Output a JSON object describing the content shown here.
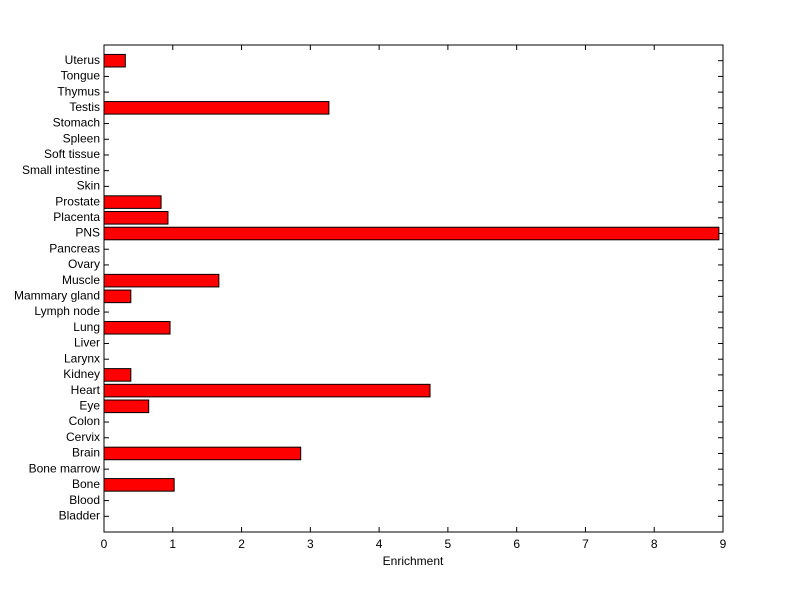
{
  "chart_data": {
    "type": "barh",
    "xlabel": "Enrichment",
    "categories": [
      "Bladder",
      "Blood",
      "Bone",
      "Bone marrow",
      "Brain",
      "Cervix",
      "Colon",
      "Eye",
      "Heart",
      "Kidney",
      "Larynx",
      "Liver",
      "Lung",
      "Lymph node",
      "Mammary gland",
      "Muscle",
      "Ovary",
      "Pancreas",
      "PNS",
      "Placenta",
      "Prostate",
      "Skin",
      "Small intestine",
      "Soft tissue",
      "Spleen",
      "Stomach",
      "Testis",
      "Thymus",
      "Tongue",
      "Uterus"
    ],
    "values": [
      0,
      0,
      1.02,
      0,
      2.86,
      0,
      0,
      0.65,
      4.74,
      0.39,
      0,
      0,
      0.96,
      0,
      0.39,
      1.67,
      0,
      0,
      8.94,
      0.93,
      0.83,
      0,
      0,
      0,
      0,
      0,
      3.27,
      0,
      0,
      0.31
    ],
    "color": "#ff0000",
    "xlim": [
      0,
      9
    ],
    "xticks": [
      0,
      1,
      2,
      3,
      4,
      5,
      6,
      7,
      8,
      9
    ]
  }
}
